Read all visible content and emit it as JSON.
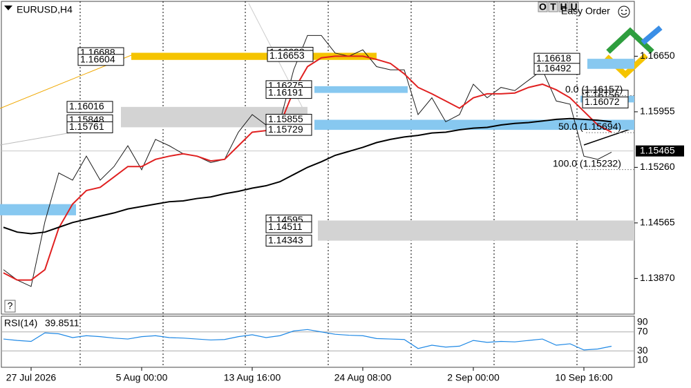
{
  "symbol": "EURUSD,H4",
  "toolbar": {
    "buttons": [
      "O",
      "T",
      "H",
      "U"
    ],
    "easy_order": "Easy Order",
    "help": "?"
  },
  "chart_data": [
    {
      "type": "line",
      "categories": [
        null,
        null,
        "27 Jul 2026",
        null,
        null,
        null,
        null,
        null,
        null,
        null,
        "5 Aug 00:00",
        null,
        null,
        null,
        null,
        null,
        null,
        null,
        "13 Aug 16:00",
        null,
        null,
        null,
        null,
        null,
        null,
        null,
        "24 Aug 08:00",
        null,
        null,
        null,
        null,
        null,
        null,
        null,
        "2 Sep 00:00",
        null,
        null,
        null,
        null,
        null,
        null,
        null,
        "10 Sep 16:00",
        null,
        null
      ],
      "series": [
        {
          "color": "#1a1a1a",
          "values": [
            1.1398,
            1.1385,
            1.1377,
            1.1458,
            1.1519,
            1.151,
            1.154,
            1.151,
            1.1527,
            1.1553,
            1.1523,
            1.1561,
            1.1553,
            1.1543,
            1.154,
            1.1532,
            1.1536,
            1.157,
            1.1592,
            1.1579,
            1.1583,
            1.1648,
            1.1691,
            1.1691,
            1.1669,
            1.1665,
            1.1673,
            1.1652,
            1.1648,
            1.1648,
            1.1592,
            1.1613,
            1.1583,
            1.1592,
            1.163,
            1.1613,
            1.1626,
            1.1622,
            1.1635,
            1.1648,
            1.1609,
            1.1605,
            1.154,
            1.1536,
            1.1545
          ]
        },
        {
          "color": "#e02020",
          "values": [
            1.1394,
            1.1385,
            1.1385,
            1.1398,
            1.145,
            1.148,
            1.1497,
            1.1501,
            1.1514,
            1.1527,
            1.1527,
            1.1536,
            1.154,
            1.1543,
            1.154,
            1.1534,
            1.1536,
            1.1553,
            1.157,
            1.1572,
            1.1579,
            1.1622,
            1.1652,
            1.1663,
            1.1665,
            1.1665,
            1.1665,
            1.1661,
            1.1656,
            1.1643,
            1.1626,
            1.1618,
            1.1609,
            1.16,
            1.1613,
            1.1618,
            1.1618,
            1.1619,
            1.1626,
            1.163,
            1.1623,
            1.1613,
            1.1596,
            1.1579,
            1.157
          ]
        },
        {
          "color": "#000000",
          "values": [
            1.1451,
            1.1445,
            1.1443,
            1.1445,
            1.1451,
            1.1457,
            1.1461,
            1.1465,
            1.1469,
            1.1474,
            1.1477,
            1.148,
            1.1483,
            1.1484,
            1.1487,
            1.1489,
            1.1493,
            1.1496,
            1.15,
            1.1503,
            1.1508,
            1.1517,
            1.1526,
            1.1533,
            1.1541,
            1.1546,
            1.1551,
            1.1557,
            1.1561,
            1.1564,
            1.1566,
            1.1569,
            1.157,
            1.1573,
            1.1575,
            1.1576,
            1.1579,
            1.1581,
            1.1582,
            1.1584,
            1.1586,
            1.1587,
            1.1586,
            1.1585,
            1.1583
          ]
        }
      ],
      "ylim": [
        1.13424,
        1.17336
      ],
      "yticks": [
        {
          "value": 1.1665,
          "label": "1.16650"
        },
        1.15955,
        {
          "value": 1.1526,
          "label": "1.15260"
        },
        1.14565,
        {
          "value": 1.1387,
          "label": "1.13870"
        }
      ],
      "current_price": 1.15465,
      "zones": [
        {
          "color": "#f5c400",
          "levels": [
            1.16688,
            1.16604,
            1.16693,
            1.16653
          ]
        },
        {
          "color": "#d3d3d3",
          "levels": [
            1.16016,
            1.15848,
            1.15761
          ]
        },
        {
          "color": "#87c8f0",
          "levels": [
            1.16275,
            1.16191
          ]
        },
        {
          "color": "#87c8f0",
          "levels": [
            1.15855,
            1.15729
          ]
        },
        {
          "color": "#d3d3d3",
          "levels": [
            1.14595,
            1.14511,
            1.14343
          ]
        },
        {
          "color": "#87c8f0",
          "levels": [
            1.16618,
            1.16492
          ]
        },
        {
          "color": "#87c8f0",
          "levels": [
            1.16156,
            1.16072
          ]
        },
        {
          "color": "#87c8f0",
          "levels": [
            1.148,
            1.1466
          ]
        }
      ],
      "fibonacci": [
        {
          "value": 1.16157,
          "label": "0.0 (1.16157)"
        },
        {
          "value": 1.15694,
          "label": "50.0 (1.15694)"
        },
        {
          "value": 1.15232,
          "label": "100.0 (1.15232)"
        }
      ]
    },
    {
      "type": "line",
      "title": "RSI(14)",
      "color": "#1e88e5",
      "values": [
        55,
        52,
        50,
        68,
        66,
        58,
        62,
        60,
        57,
        55,
        60,
        62,
        58,
        57,
        55,
        53,
        54,
        60,
        64,
        58,
        62,
        72,
        75,
        70,
        65,
        63,
        62,
        56,
        55,
        54,
        35,
        42,
        38,
        40,
        52,
        48,
        50,
        49,
        52,
        55,
        42,
        45,
        32,
        34,
        39.8511
      ],
      "ylim": [
        10,
        90
      ],
      "yticks": [
        90,
        70,
        30,
        10
      ]
    }
  ]
}
